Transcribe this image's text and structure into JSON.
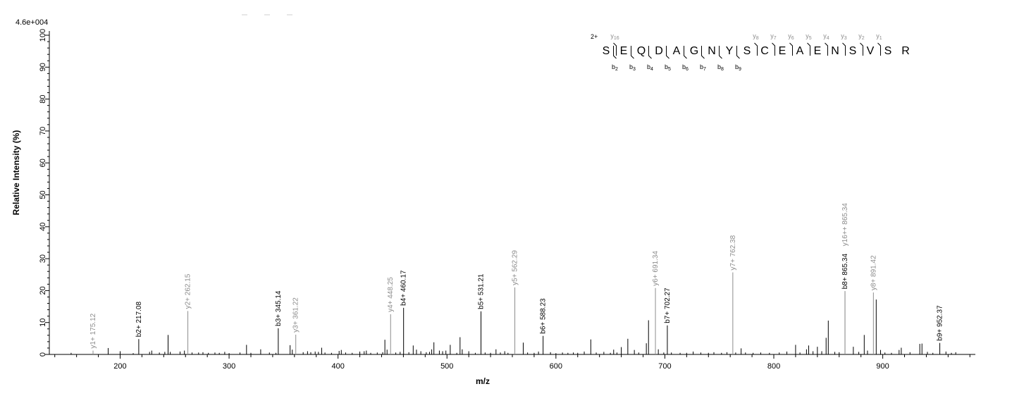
{
  "chart_data": {
    "type": "bar",
    "scale_label": "4.6e+004",
    "xlabel": "m/z",
    "ylabel": "Relative   Intensity (%)",
    "xlim": [
      135,
      985
    ],
    "ylim": [
      0,
      100
    ],
    "x_ticks": [
      200,
      300,
      400,
      500,
      600,
      700,
      800,
      900
    ],
    "y_ticks": [
      0,
      10,
      20,
      30,
      40,
      50,
      60,
      70,
      80,
      90,
      100
    ],
    "colors": {
      "b_ion": "#000000",
      "y_ion": "#8c8c8c",
      "noise": "#000000",
      "axis": "#000000"
    },
    "annotated_peaks": [
      {
        "label": "y1+ 175.12",
        "mz": 175.12,
        "intensity": 1.2,
        "ion": "y"
      },
      {
        "label": "b2+ 217.08",
        "mz": 217.08,
        "intensity": 4.8,
        "ion": "b"
      },
      {
        "label": "y2+ 262.15",
        "mz": 262.15,
        "intensity": 13.6,
        "ion": "y"
      },
      {
        "label": "b3+ 345.14",
        "mz": 345.14,
        "intensity": 8.2,
        "ion": "b"
      },
      {
        "label": "y3+ 361.22",
        "mz": 361.22,
        "intensity": 6.2,
        "ion": "y"
      },
      {
        "label": "y4+ 448.25",
        "mz": 448.25,
        "intensity": 12.6,
        "ion": "y"
      },
      {
        "label": "b4+ 460.17",
        "mz": 460.17,
        "intensity": 14.6,
        "ion": "b"
      },
      {
        "label": "b5+ 531.21",
        "mz": 531.21,
        "intensity": 13.5,
        "ion": "b"
      },
      {
        "label": "y5+ 562.29",
        "mz": 562.29,
        "intensity": 21.0,
        "ion": "y"
      },
      {
        "label": "b6+ 588.23",
        "mz": 588.23,
        "intensity": 5.8,
        "ion": "b"
      },
      {
        "label": "y6+ 691.34",
        "mz": 691.34,
        "intensity": 20.8,
        "ion": "y"
      },
      {
        "label": "b7+ 702.27",
        "mz": 702.27,
        "intensity": 9.1,
        "ion": "b"
      },
      {
        "label": "y7+ 762.38",
        "mz": 762.38,
        "intensity": 25.7,
        "ion": "y"
      },
      {
        "label": "b8+ 865.34",
        "mz": 865.34,
        "intensity": 19.8,
        "ion": "b"
      },
      {
        "label": "y16++ 865.34",
        "mz": 865.34,
        "intensity": 19.8,
        "ion": "y"
      },
      {
        "label": "y8+ 891.42",
        "mz": 891.42,
        "intensity": 19.4,
        "ion": "y"
      },
      {
        "label": "b9+ 952.37",
        "mz": 952.37,
        "intensity": 3.6,
        "ion": "b"
      }
    ],
    "unlabeled_peaks": [
      [
        155,
        0.5
      ],
      [
        189,
        2.0
      ],
      [
        200,
        1.0
      ],
      [
        212,
        0.4
      ],
      [
        227,
        0.8
      ],
      [
        229,
        1.2
      ],
      [
        236,
        0.6
      ],
      [
        241,
        0.8
      ],
      [
        244,
        6.1
      ],
      [
        246,
        0.8
      ],
      [
        255,
        0.9
      ],
      [
        259,
        1.2
      ],
      [
        266,
        0.6
      ],
      [
        272,
        0.6
      ],
      [
        276,
        0.7
      ],
      [
        281,
        0.5
      ],
      [
        287,
        0.6
      ],
      [
        291,
        0.5
      ],
      [
        296,
        0.8
      ],
      [
        300,
        0.4
      ],
      [
        310,
        0.6
      ],
      [
        316,
        3.0
      ],
      [
        320,
        0.5
      ],
      [
        329,
        1.6
      ],
      [
        337,
        0.6
      ],
      [
        343,
        0.5
      ],
      [
        356,
        2.9
      ],
      [
        358,
        1.5
      ],
      [
        368,
        0.7
      ],
      [
        372,
        1.0
      ],
      [
        375,
        0.7
      ],
      [
        379,
        0.9
      ],
      [
        382,
        0.8
      ],
      [
        385,
        2.1
      ],
      [
        388,
        0.6
      ],
      [
        394,
        0.5
      ],
      [
        401,
        1.1
      ],
      [
        403,
        1.4
      ],
      [
        407,
        0.6
      ],
      [
        413,
        0.5
      ],
      [
        420,
        0.9
      ],
      [
        424,
        1.0
      ],
      [
        426,
        1.2
      ],
      [
        430,
        0.5
      ],
      [
        436,
        0.6
      ],
      [
        441,
        0.7
      ],
      [
        443,
        4.6
      ],
      [
        445,
        1.5
      ],
      [
        453,
        0.6
      ],
      [
        457,
        0.8
      ],
      [
        465,
        0.7
      ],
      [
        469,
        2.8
      ],
      [
        472,
        1.5
      ],
      [
        476,
        1.0
      ],
      [
        481,
        0.7
      ],
      [
        484,
        0.8
      ],
      [
        486,
        1.6
      ],
      [
        488,
        3.8
      ],
      [
        493,
        1.2
      ],
      [
        496,
        1.0
      ],
      [
        499,
        1.2
      ],
      [
        503,
        3.0
      ],
      [
        509,
        0.5
      ],
      [
        512,
        5.4
      ],
      [
        514,
        1.6
      ],
      [
        520,
        1.0
      ],
      [
        526,
        0.5
      ],
      [
        535,
        0.6
      ],
      [
        540,
        0.5
      ],
      [
        545,
        1.6
      ],
      [
        549,
        0.6
      ],
      [
        553,
        1.0
      ],
      [
        556,
        0.5
      ],
      [
        570,
        3.7
      ],
      [
        574,
        0.6
      ],
      [
        580,
        0.5
      ],
      [
        584,
        0.9
      ],
      [
        595,
        0.7
      ],
      [
        600,
        0.4
      ],
      [
        606,
        0.6
      ],
      [
        611,
        0.5
      ],
      [
        616,
        0.6
      ],
      [
        620,
        0.5
      ],
      [
        626,
        0.9
      ],
      [
        632,
        4.7
      ],
      [
        637,
        0.6
      ],
      [
        644,
        0.8
      ],
      [
        650,
        0.5
      ],
      [
        653,
        1.5
      ],
      [
        656,
        0.6
      ],
      [
        660,
        2.3
      ],
      [
        666,
        4.9
      ],
      [
        672,
        1.4
      ],
      [
        676,
        0.6
      ],
      [
        683,
        3.5
      ],
      [
        685,
        10.7
      ],
      [
        694,
        1.6
      ],
      [
        699,
        0.6
      ],
      [
        706,
        0.6
      ],
      [
        714,
        0.5
      ],
      [
        720,
        0.5
      ],
      [
        726,
        0.9
      ],
      [
        733,
        0.6
      ],
      [
        740,
        0.5
      ],
      [
        745,
        0.7
      ],
      [
        752,
        0.5
      ],
      [
        757,
        0.7
      ],
      [
        765,
        0.6
      ],
      [
        770,
        1.9
      ],
      [
        774,
        0.6
      ],
      [
        781,
        0.5
      ],
      [
        788,
        0.6
      ],
      [
        796,
        0.5
      ],
      [
        805,
        0.6
      ],
      [
        812,
        0.9
      ],
      [
        820,
        3.0
      ],
      [
        824,
        0.6
      ],
      [
        830,
        1.6
      ],
      [
        832,
        2.8
      ],
      [
        836,
        1.0
      ],
      [
        840,
        2.4
      ],
      [
        844,
        1.0
      ],
      [
        848,
        5.2
      ],
      [
        850,
        10.6
      ],
      [
        856,
        0.8
      ],
      [
        860,
        0.7
      ],
      [
        873,
        2.4
      ],
      [
        878,
        0.8
      ],
      [
        883,
        6.1
      ],
      [
        886,
        1.2
      ],
      [
        894,
        17.2
      ],
      [
        898,
        1.4
      ],
      [
        902,
        0.6
      ],
      [
        908,
        0.5
      ],
      [
        915,
        1.4
      ],
      [
        917,
        2.1
      ],
      [
        925,
        0.7
      ],
      [
        934,
        3.3
      ],
      [
        936,
        3.4
      ],
      [
        941,
        0.8
      ],
      [
        946,
        0.5
      ],
      [
        958,
        0.9
      ],
      [
        963,
        0.5
      ],
      [
        967,
        0.7
      ]
    ],
    "peptide": {
      "charge": "2+",
      "sequence": [
        "S",
        "E",
        "Q",
        "D",
        "A",
        "G",
        "N",
        "Y",
        "S",
        "C",
        "E",
        "A",
        "E",
        "N",
        "S",
        "V",
        "S",
        "R"
      ],
      "b_ions": [
        {
          "main": "b",
          "sub": "2",
          "after": 1
        },
        {
          "main": "b",
          "sub": "3",
          "after": 2
        },
        {
          "main": "b",
          "sub": "4",
          "after": 3
        },
        {
          "main": "b",
          "sub": "5",
          "after": 4
        },
        {
          "main": "b",
          "sub": "6",
          "after": 5
        },
        {
          "main": "b",
          "sub": "7",
          "after": 6
        },
        {
          "main": "b",
          "sub": "8",
          "after": 7
        },
        {
          "main": "b",
          "sub": "9",
          "after": 8
        }
      ],
      "y_ions": [
        {
          "main": "y",
          "sub": "16",
          "after": 1
        },
        {
          "main": "y",
          "sub": "8",
          "after": 9
        },
        {
          "main": "y",
          "sub": "7",
          "after": 10
        },
        {
          "main": "y",
          "sub": "6",
          "after": 11
        },
        {
          "main": "y",
          "sub": "5",
          "after": 12
        },
        {
          "main": "y",
          "sub": "4",
          "after": 13
        },
        {
          "main": "y",
          "sub": "3",
          "after": 14
        },
        {
          "main": "y",
          "sub": "2",
          "after": 15
        },
        {
          "main": "y",
          "sub": "1",
          "after": 16
        }
      ]
    }
  }
}
